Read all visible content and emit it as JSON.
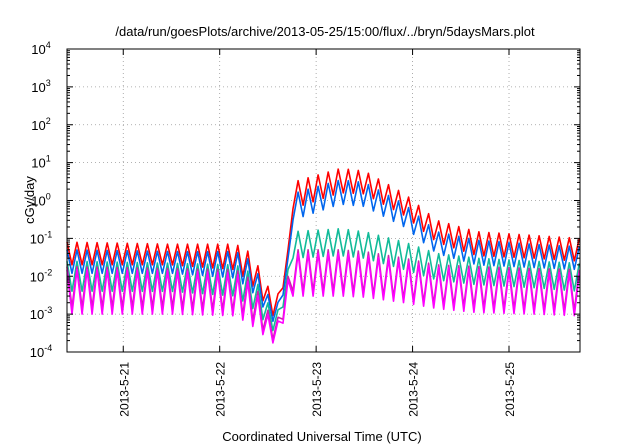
{
  "chart_data": {
    "type": "line",
    "title": "/data/run/goesPlots/archive/2013-05-25/15:00/flux/../bryn/5daysMars.plot",
    "xlabel": "Coordinated Universal Time (UTC)",
    "ylabel": "cGy/day",
    "y_scale": "log",
    "ylim": [
      0.0001,
      10000
    ],
    "xlim": [
      "2013-05-20 10:00",
      "2013-05-25 17:40"
    ],
    "y_ticks": [
      {
        "base": "10",
        "exp": "-4",
        "value": 0.0001
      },
      {
        "base": "10",
        "exp": "-3",
        "value": 0.001
      },
      {
        "base": "10",
        "exp": "-2",
        "value": 0.01
      },
      {
        "base": "10",
        "exp": "-1",
        "value": 0.1
      },
      {
        "base": "10",
        "exp": "0",
        "value": 1
      },
      {
        "base": "10",
        "exp": "1",
        "value": 10
      },
      {
        "base": "10",
        "exp": "2",
        "value": 100
      },
      {
        "base": "10",
        "exp": "3",
        "value": 1000
      },
      {
        "base": "10",
        "exp": "4",
        "value": 10000
      }
    ],
    "x_ticks": [
      {
        "label": "2013-5-21",
        "date": "2013-05-21 00:00"
      },
      {
        "label": "2013-5-22",
        "date": "2013-05-22 00:00"
      },
      {
        "label": "2013-5-23",
        "date": "2013-05-23 00:00"
      },
      {
        "label": "2013-5-24",
        "date": "2013-05-24 00:00"
      },
      {
        "label": "2013-5-25",
        "date": "2013-05-25 00:00"
      }
    ],
    "grid": true,
    "legend": "none",
    "period_hours": 2.5,
    "series": [
      {
        "color": "#ff0000",
        "peaks": [
          [
            "2013-05-20 10:00",
            0.08
          ],
          [
            "2013-05-21 12:00",
            0.07
          ],
          [
            "2013-05-22 04:00",
            0.07
          ],
          [
            "2013-05-22 08:00",
            0.04
          ],
          [
            "2013-05-22 14:00",
            0.002
          ],
          [
            "2013-05-22 17:00",
            0.05
          ],
          [
            "2013-05-22 18:00",
            3.0
          ],
          [
            "2013-05-23 06:00",
            7.0
          ],
          [
            "2013-05-23 12:00",
            6.0
          ],
          [
            "2013-05-23 22:00",
            1.5
          ],
          [
            "2013-05-24 06:00",
            0.3
          ],
          [
            "2013-05-24 16:00",
            0.15
          ],
          [
            "2013-05-25 06:00",
            0.12
          ],
          [
            "2013-05-25 17:40",
            0.1
          ]
        ],
        "troughs": [
          [
            "2013-05-20 10:00",
            0.02
          ],
          [
            "2013-05-21 12:00",
            0.02
          ],
          [
            "2013-05-22 04:00",
            0.015
          ],
          [
            "2013-05-22 08:00",
            0.006
          ],
          [
            "2013-05-22 14:00",
            0.0007
          ],
          [
            "2013-05-22 17:00",
            0.02
          ],
          [
            "2013-05-22 18:00",
            0.6
          ],
          [
            "2013-05-23 06:00",
            1.6
          ],
          [
            "2013-05-23 12:00",
            1.5
          ],
          [
            "2013-05-23 22:00",
            0.4
          ],
          [
            "2013-05-24 06:00",
            0.08
          ],
          [
            "2013-05-24 16:00",
            0.035
          ],
          [
            "2013-05-25 06:00",
            0.03
          ],
          [
            "2013-05-25 17:40",
            0.025
          ]
        ]
      },
      {
        "color": "#0066ee",
        "peaks": [
          [
            "2013-05-20 10:00",
            0.05
          ],
          [
            "2013-05-21 12:00",
            0.045
          ],
          [
            "2013-05-22 04:00",
            0.045
          ],
          [
            "2013-05-22 08:00",
            0.025
          ],
          [
            "2013-05-22 14:00",
            0.0012
          ],
          [
            "2013-05-22 17:00",
            0.03
          ],
          [
            "2013-05-22 18:00",
            1.5
          ],
          [
            "2013-05-23 06:00",
            3.5
          ],
          [
            "2013-05-23 12:00",
            3.0
          ],
          [
            "2013-05-23 22:00",
            0.8
          ],
          [
            "2013-05-24 06:00",
            0.15
          ],
          [
            "2013-05-24 16:00",
            0.09
          ],
          [
            "2013-05-25 06:00",
            0.07
          ],
          [
            "2013-05-25 17:40",
            0.06
          ]
        ],
        "troughs": [
          [
            "2013-05-20 10:00",
            0.012
          ],
          [
            "2013-05-21 12:00",
            0.012
          ],
          [
            "2013-05-22 04:00",
            0.009
          ],
          [
            "2013-05-22 08:00",
            0.004
          ],
          [
            "2013-05-22 14:00",
            0.0005
          ],
          [
            "2013-05-22 17:00",
            0.012
          ],
          [
            "2013-05-22 18:00",
            0.3
          ],
          [
            "2013-05-23 06:00",
            0.8
          ],
          [
            "2013-05-23 12:00",
            0.7
          ],
          [
            "2013-05-23 22:00",
            0.2
          ],
          [
            "2013-05-24 06:00",
            0.04
          ],
          [
            "2013-05-24 16:00",
            0.02
          ],
          [
            "2013-05-25 06:00",
            0.017
          ],
          [
            "2013-05-25 17:40",
            0.015
          ]
        ]
      },
      {
        "color": "#11bb99",
        "peaks": [
          [
            "2013-05-20 10:00",
            0.025
          ],
          [
            "2013-05-21 12:00",
            0.022
          ],
          [
            "2013-05-22 04:00",
            0.02
          ],
          [
            "2013-05-22 08:00",
            0.012
          ],
          [
            "2013-05-22 14:00",
            0.0008
          ],
          [
            "2013-05-22 17:00",
            0.015
          ],
          [
            "2013-05-22 18:00",
            0.15
          ],
          [
            "2013-05-23 06:00",
            0.18
          ],
          [
            "2013-05-23 12:00",
            0.15
          ],
          [
            "2013-05-23 22:00",
            0.08
          ],
          [
            "2013-05-24 06:00",
            0.04
          ],
          [
            "2013-05-24 16:00",
            0.03
          ],
          [
            "2013-05-25 06:00",
            0.025
          ],
          [
            "2013-05-25 17:40",
            0.022
          ]
        ],
        "troughs": [
          [
            "2013-05-20 10:00",
            0.004
          ],
          [
            "2013-05-21 12:00",
            0.004
          ],
          [
            "2013-05-22 04:00",
            0.003
          ],
          [
            "2013-05-22 08:00",
            0.0015
          ],
          [
            "2013-05-22 14:00",
            0.0003
          ],
          [
            "2013-05-22 17:00",
            0.005
          ],
          [
            "2013-05-22 18:00",
            0.03
          ],
          [
            "2013-05-23 06:00",
            0.035
          ],
          [
            "2013-05-23 12:00",
            0.03
          ],
          [
            "2013-05-23 22:00",
            0.015
          ],
          [
            "2013-05-24 06:00",
            0.008
          ],
          [
            "2013-05-24 16:00",
            0.006
          ],
          [
            "2013-05-25 06:00",
            0.005
          ],
          [
            "2013-05-25 17:40",
            0.004
          ]
        ]
      },
      {
        "color": "#cc22aa",
        "peaks": [
          [
            "2013-05-20 10:00",
            0.018
          ],
          [
            "2013-05-21 12:00",
            0.016
          ],
          [
            "2013-05-22 04:00",
            0.015
          ],
          [
            "2013-05-22 08:00",
            0.008
          ],
          [
            "2013-05-22 14:00",
            0.0005
          ],
          [
            "2013-05-22 17:00",
            0.01
          ],
          [
            "2013-05-22 18:00",
            0.05
          ],
          [
            "2013-05-23 06:00",
            0.05
          ],
          [
            "2013-05-23 12:00",
            0.045
          ],
          [
            "2013-05-23 22:00",
            0.03
          ],
          [
            "2013-05-24 06:00",
            0.02
          ],
          [
            "2013-05-24 16:00",
            0.018
          ],
          [
            "2013-05-25 06:00",
            0.016
          ],
          [
            "2013-05-25 17:40",
            0.015
          ]
        ],
        "troughs": [
          [
            "2013-05-20 10:00",
            0.0015
          ],
          [
            "2013-05-21 12:00",
            0.0015
          ],
          [
            "2013-05-22 04:00",
            0.0012
          ],
          [
            "2013-05-22 08:00",
            0.0007
          ],
          [
            "2013-05-22 14:00",
            0.00018
          ],
          [
            "2013-05-22 17:00",
            0.002
          ],
          [
            "2013-05-22 18:00",
            0.004
          ],
          [
            "2013-05-23 06:00",
            0.004
          ],
          [
            "2013-05-23 12:00",
            0.0035
          ],
          [
            "2013-05-23 22:00",
            0.0025
          ],
          [
            "2013-05-24 06:00",
            0.0018
          ],
          [
            "2013-05-24 16:00",
            0.0015
          ],
          [
            "2013-05-25 06:00",
            0.0013
          ],
          [
            "2013-05-25 17:40",
            0.0012
          ]
        ]
      },
      {
        "color": "#ff00ff",
        "peaks": [
          [
            "2013-05-20 10:00",
            0.015
          ],
          [
            "2013-05-21 12:00",
            0.014
          ],
          [
            "2013-05-22 04:00",
            0.012
          ],
          [
            "2013-05-22 08:00",
            0.006
          ],
          [
            "2013-05-22 14:00",
            0.0004
          ],
          [
            "2013-05-22 17:00",
            0.008
          ],
          [
            "2013-05-22 18:00",
            0.04
          ],
          [
            "2013-05-23 06:00",
            0.04
          ],
          [
            "2013-05-23 12:00",
            0.035
          ],
          [
            "2013-05-23 22:00",
            0.025
          ],
          [
            "2013-05-24 06:00",
            0.017
          ],
          [
            "2013-05-24 16:00",
            0.015
          ],
          [
            "2013-05-25 06:00",
            0.013
          ],
          [
            "2013-05-25 17:40",
            0.012
          ]
        ],
        "troughs": [
          [
            "2013-05-20 10:00",
            0.001
          ],
          [
            "2013-05-21 12:00",
            0.001
          ],
          [
            "2013-05-22 04:00",
            0.0009
          ],
          [
            "2013-05-22 08:00",
            0.0005
          ],
          [
            "2013-05-22 14:00",
            0.00015
          ],
          [
            "2013-05-22 17:00",
            0.0015
          ],
          [
            "2013-05-22 18:00",
            0.003
          ],
          [
            "2013-05-23 06:00",
            0.003
          ],
          [
            "2013-05-23 12:00",
            0.0028
          ],
          [
            "2013-05-23 22:00",
            0.002
          ],
          [
            "2013-05-24 06:00",
            0.0014
          ],
          [
            "2013-05-24 16:00",
            0.0011
          ],
          [
            "2013-05-25 06:00",
            0.001
          ],
          [
            "2013-05-25 17:40",
            0.0009
          ]
        ]
      }
    ]
  }
}
